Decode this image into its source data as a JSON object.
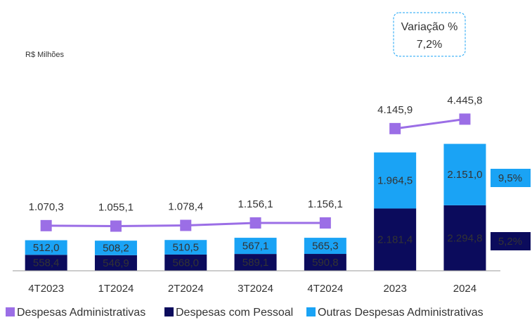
{
  "chart_data": {
    "type": "bar",
    "stacked": true,
    "unit_label": "R$ Milhões",
    "categories": [
      "4T2023",
      "1T2024",
      "2T2024",
      "3T2024",
      "4T2024",
      "2023",
      "2024"
    ],
    "series": [
      {
        "name": "Despesas Administrativas",
        "type": "line",
        "axis": "y2",
        "color": "#9b6ee6",
        "values": [
          1070.3,
          1055.1,
          1078.4,
          1156.1,
          1156.1,
          4145.9,
          4445.8
        ],
        "value_labels": [
          "1.070,3",
          "1.055,1",
          "1.078,4",
          "1.156,1",
          "1.156,1",
          "4.145,9",
          "4.445,8"
        ]
      },
      {
        "name": "Despesas com Pessoal",
        "color": "#0b0b5c",
        "values": [
          558.4,
          546.9,
          568.0,
          589.1,
          590.8,
          2181.4,
          2294.8
        ],
        "value_labels": [
          "558,4",
          "546,9",
          "568,0",
          "589,1",
          "590,8",
          "2.181,4",
          "2.294,8"
        ]
      },
      {
        "name": "Outras Despesas Administrativas",
        "color": "#1aa3f5",
        "values": [
          512.0,
          508.2,
          510.5,
          567.1,
          565.3,
          1964.5,
          2151.0
        ],
        "value_labels": [
          "512,0",
          "508,2",
          "510,5",
          "567,1",
          "565,3",
          "1.964,5",
          "2.151,0"
        ]
      }
    ],
    "ylim": [
      0,
      8500
    ],
    "y2lim": [
      -360,
      7330
    ],
    "variation": {
      "title": "Variação %",
      "label": "7,2%"
    },
    "side_labels": [
      {
        "series": 2,
        "label": "9,5%"
      },
      {
        "series": 1,
        "label": "5,2%"
      }
    ]
  }
}
